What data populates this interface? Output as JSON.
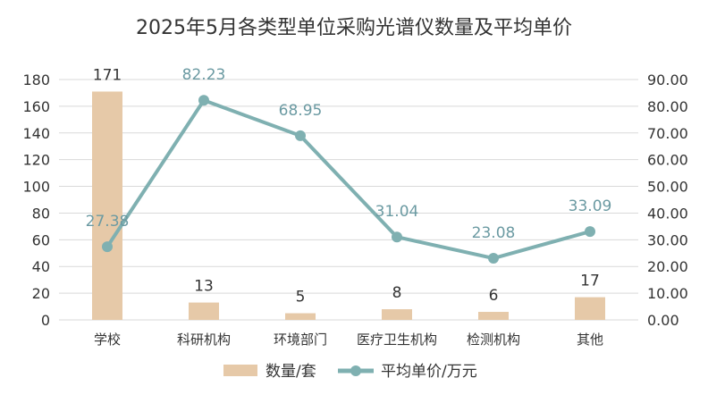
{
  "chart_data": {
    "type": "bar",
    "title": "2025年5月各类型单位采购光谱仪数量及平均单价",
    "categories": [
      "学校",
      "科研机构",
      "环境部门",
      "医疗卫生机构",
      "检测机构",
      "其他"
    ],
    "series": [
      {
        "name": "数量/套",
        "kind": "bar",
        "axis": "left",
        "color": "#e6c9a8",
        "values": [
          171,
          13,
          5,
          8,
          6,
          17
        ]
      },
      {
        "name": "平均单价/万元",
        "kind": "line",
        "axis": "right",
        "color": "#7fb0b1",
        "values": [
          27.38,
          82.23,
          68.95,
          31.04,
          23.08,
          33.09
        ]
      }
    ],
    "y_left": {
      "lim": [
        0,
        180
      ],
      "ticks": [
        "0",
        "20",
        "40",
        "60",
        "80",
        "100",
        "120",
        "140",
        "160",
        "180"
      ]
    },
    "y_right": {
      "lim": [
        0,
        90
      ],
      "ticks": [
        "0.00",
        "10.00",
        "20.00",
        "30.00",
        "40.00",
        "50.00",
        "60.00",
        "70.00",
        "80.00",
        "90.00"
      ]
    },
    "bar_labels": [
      "171",
      "13",
      "5",
      "8",
      "6",
      "17"
    ],
    "line_labels": [
      "27.38",
      "82.23",
      "68.95",
      "31.04",
      "23.08",
      "33.09"
    ],
    "grid": true,
    "legend": "bottom"
  }
}
